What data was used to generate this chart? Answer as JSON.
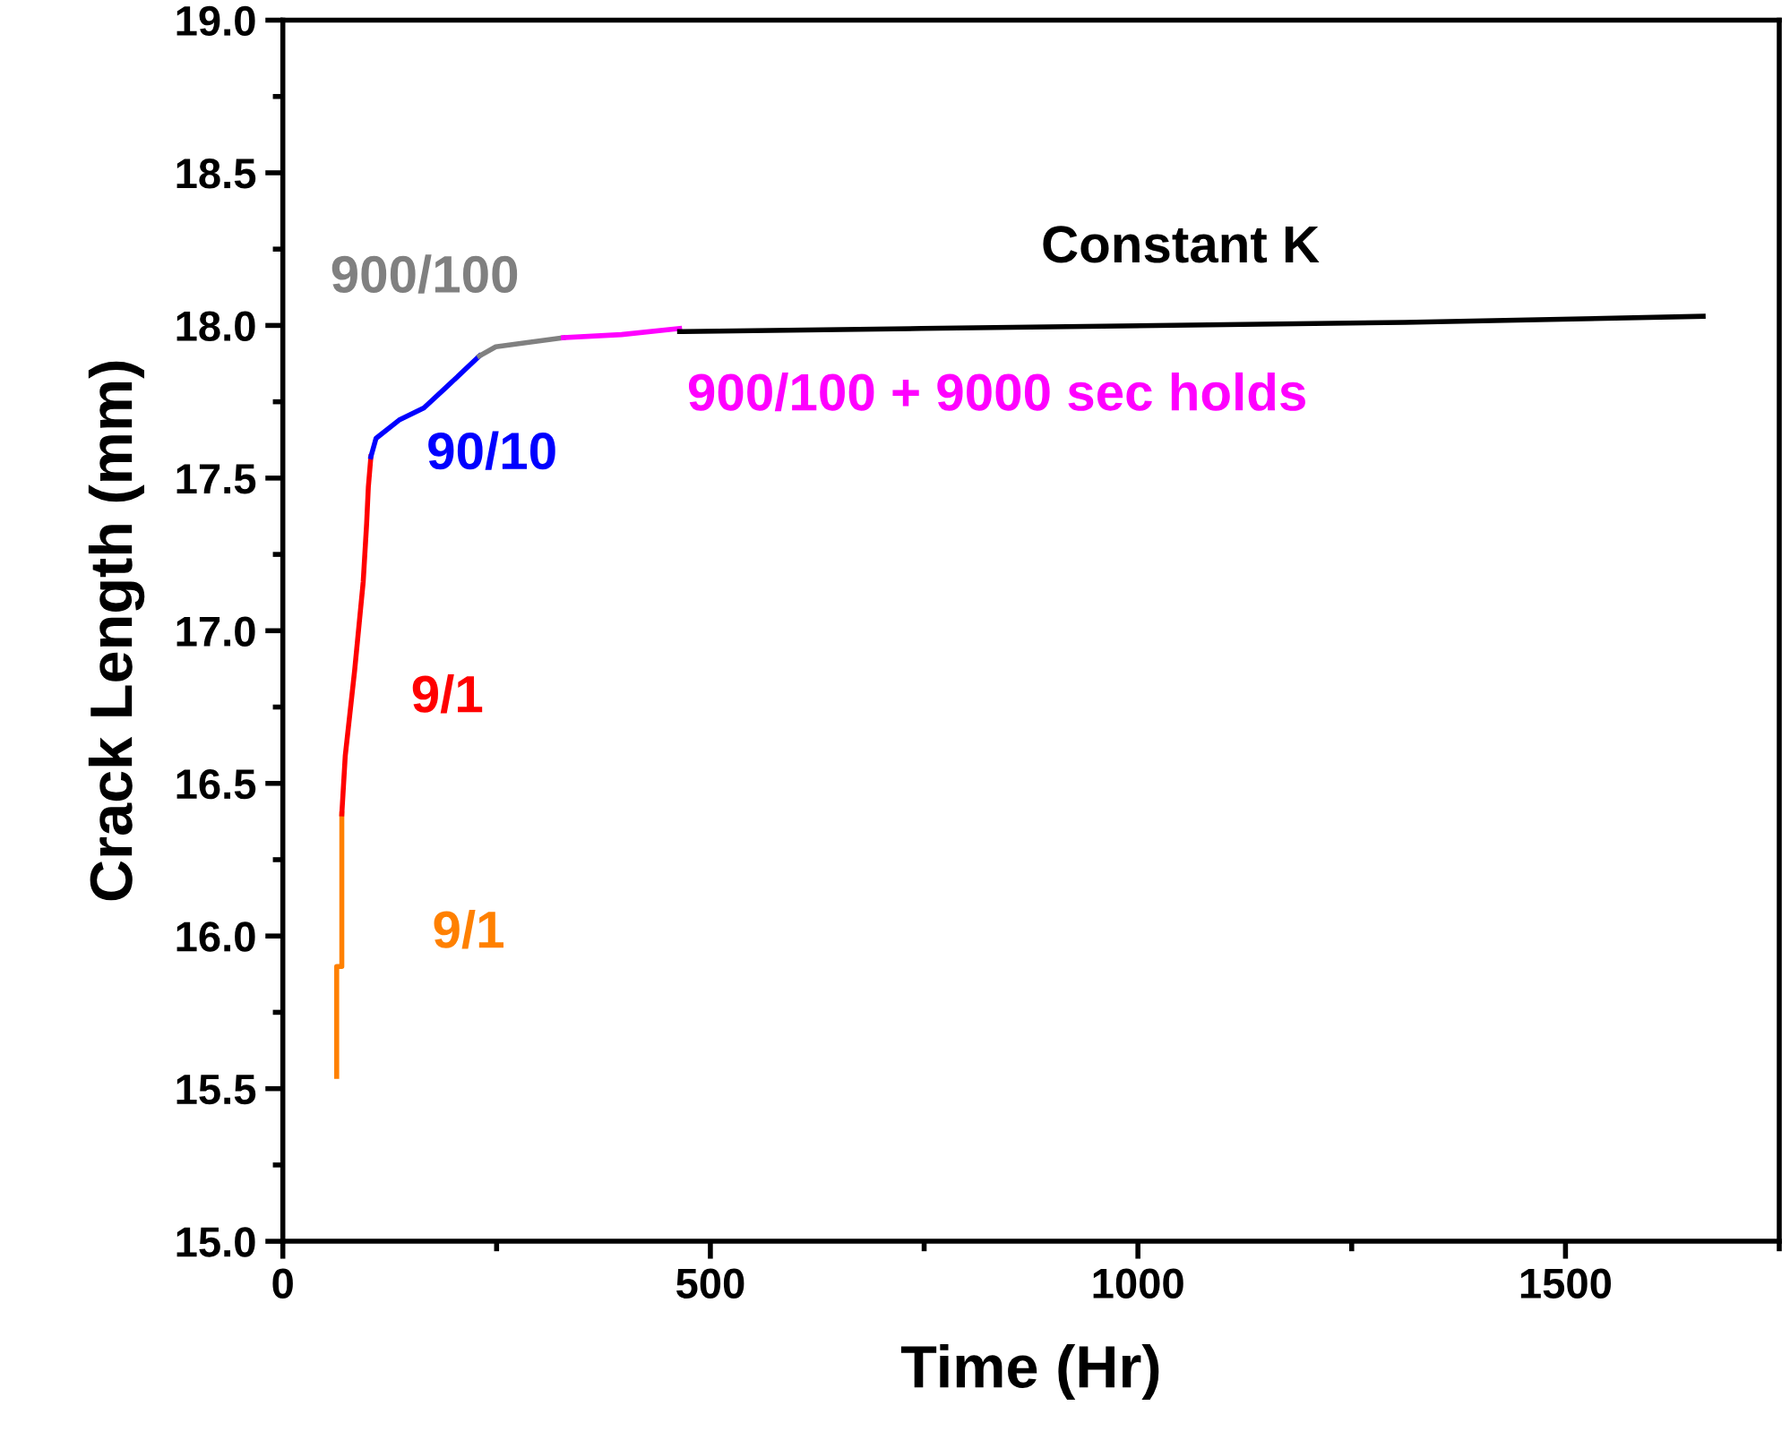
{
  "chart_data": {
    "type": "line",
    "xlabel": "Time (Hr)",
    "ylabel": "Crack Length (mm)",
    "xlim": [
      0,
      1750
    ],
    "xticks": [
      0,
      500,
      1000,
      1500
    ],
    "ylim": [
      15.0,
      19.0
    ],
    "yticks": [
      {
        "value": 15.0,
        "label": "15.0"
      },
      {
        "value": 15.5,
        "label": "15.5"
      },
      {
        "value": 16.0,
        "label": "16.0"
      },
      {
        "value": 16.5,
        "label": "16.5"
      },
      {
        "value": 17.0,
        "label": "17.0"
      },
      {
        "value": 17.5,
        "label": "17.5"
      },
      {
        "value": 18.0,
        "label": "18.0"
      },
      {
        "value": 18.5,
        "label": "18.5"
      },
      {
        "value": 19.0,
        "label": "19.0"
      }
    ],
    "grid": false,
    "legend": false,
    "marker": "none",
    "line_style": "solid",
    "series": [
      {
        "name": "9/1",
        "color": "#ff8000",
        "x": [
          63,
          63,
          69,
          69
        ],
        "values": [
          15.54,
          15.9,
          15.9,
          16.4
        ]
      },
      {
        "name": "9/1",
        "color": "#ff0000",
        "x": [
          69,
          73,
          84,
          94,
          98,
          100,
          103
        ],
        "values": [
          16.4,
          16.59,
          16.87,
          17.16,
          17.35,
          17.47,
          17.57
        ]
      },
      {
        "name": "90/10",
        "color": "#0000ff",
        "x": [
          103,
          109,
          136,
          165,
          192,
          230
        ],
        "values": [
          17.57,
          17.63,
          17.69,
          17.73,
          17.8,
          17.9
        ]
      },
      {
        "name": "900/100",
        "color": "#808080",
        "x": [
          230,
          249,
          276,
          328
        ],
        "values": [
          17.9,
          17.93,
          17.94,
          17.96
        ]
      },
      {
        "name": "900/100 + 9000 sec holds",
        "color": "#ff00ff",
        "x": [
          328,
          396,
          464
        ],
        "values": [
          17.96,
          17.97,
          17.99
        ]
      },
      {
        "name": "Constant K",
        "color": "#000000",
        "x": [
          464,
          747,
          1312,
          1661
        ],
        "values": [
          17.98,
          17.99,
          18.01,
          18.03
        ]
      }
    ]
  }
}
